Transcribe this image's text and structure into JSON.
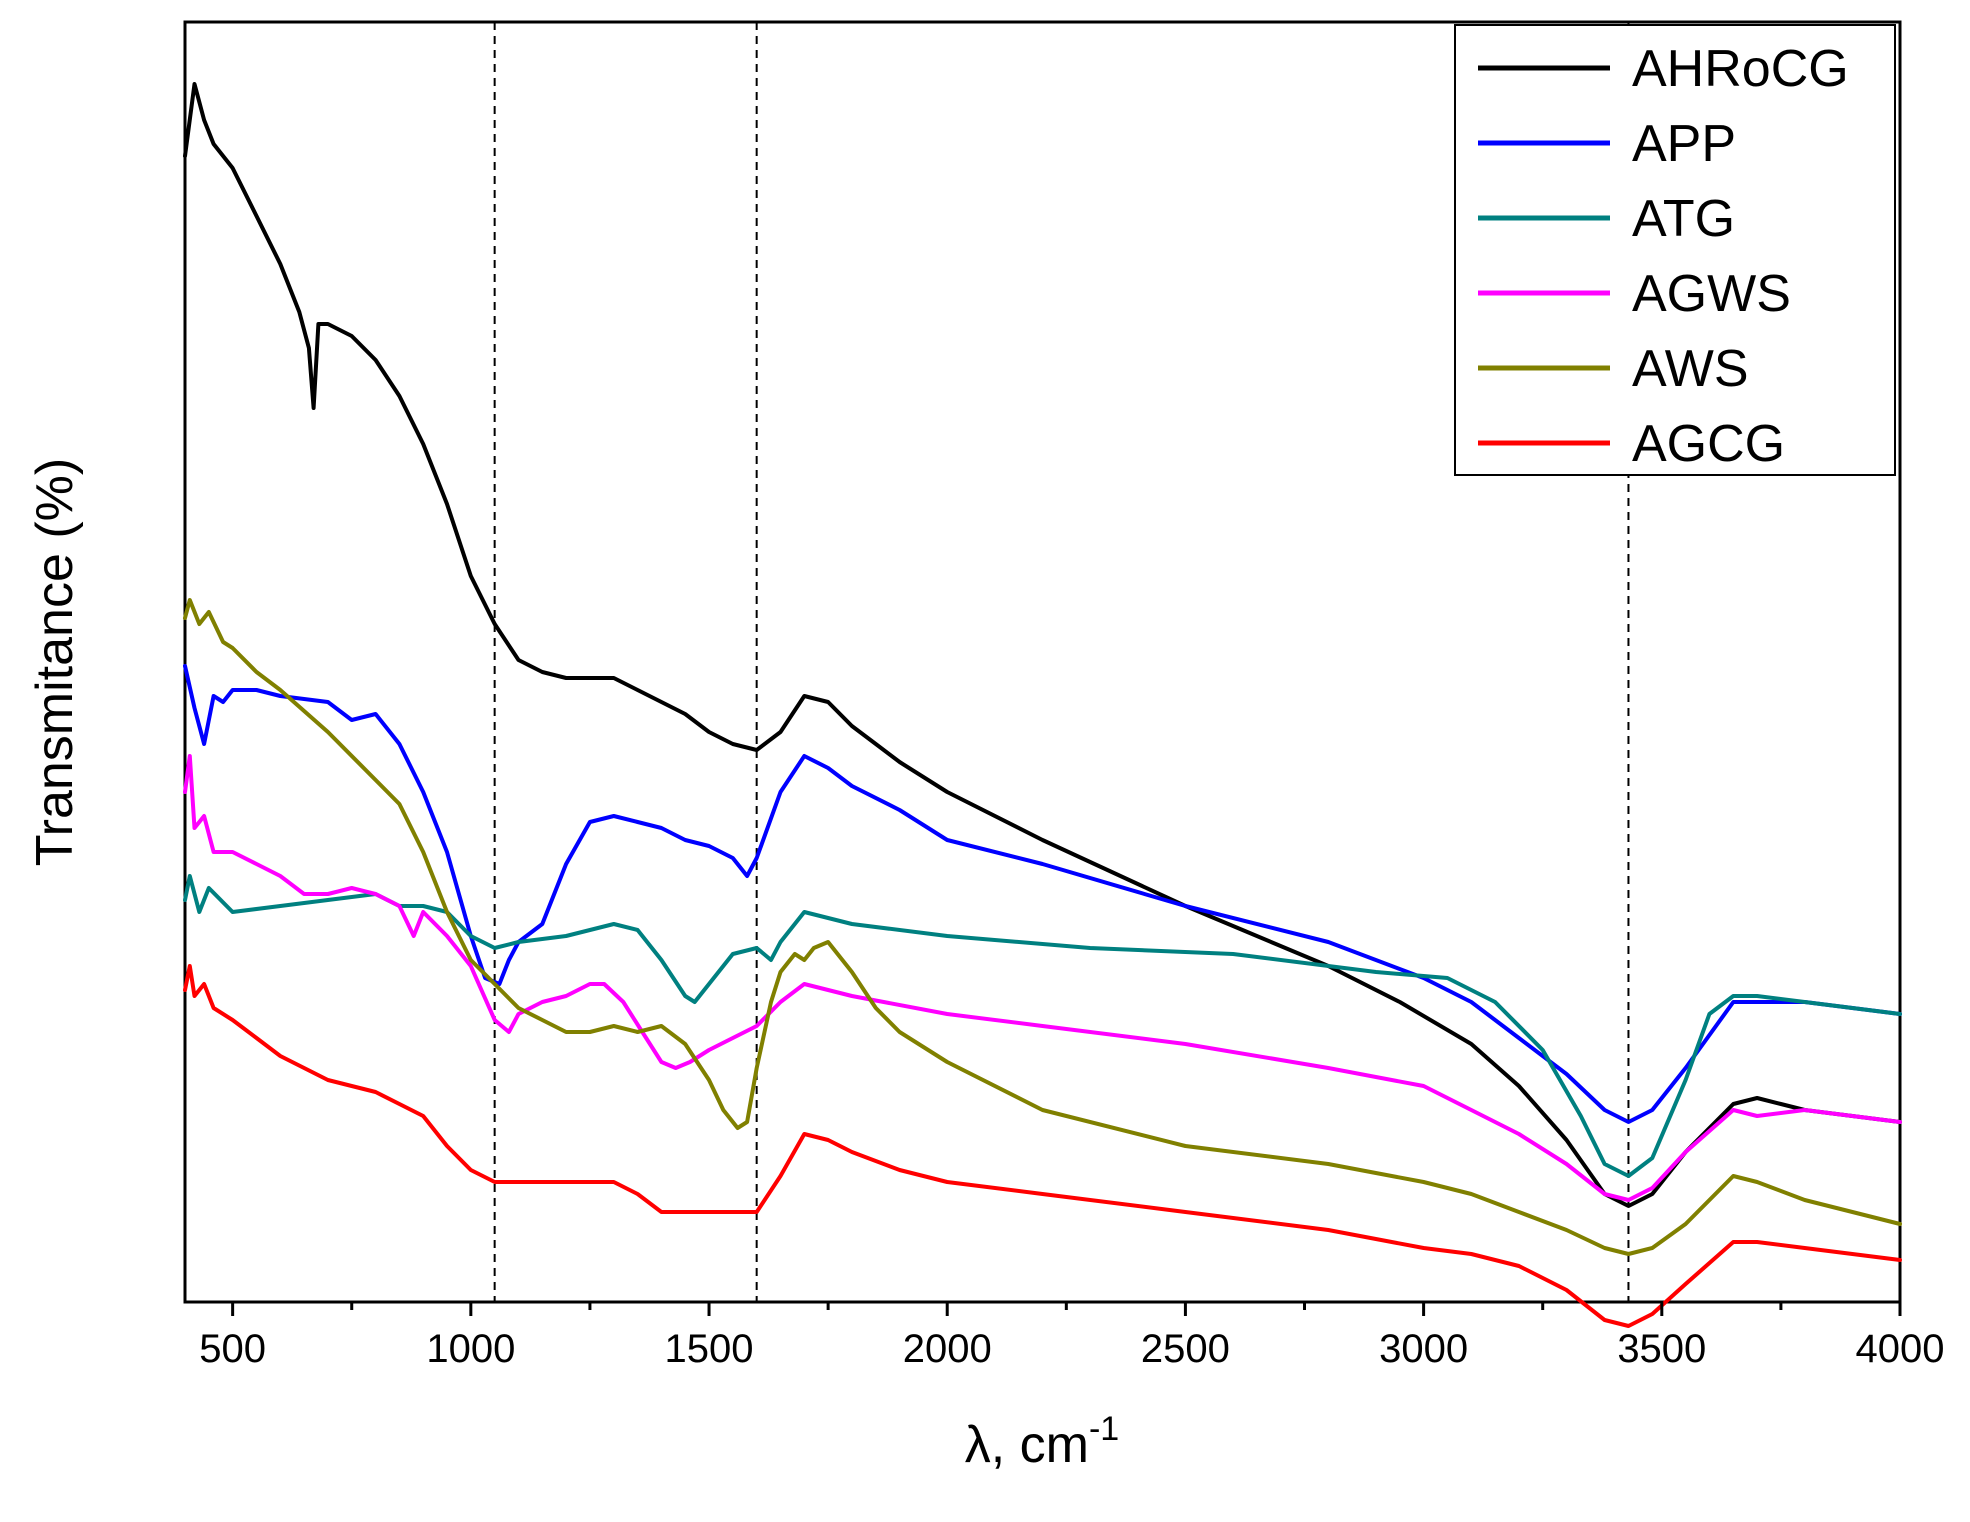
{
  "chart_data": {
    "type": "line",
    "title": "",
    "xlabel": "λ, cm",
    "xlabel_sup": "-1",
    "ylabel": "Transmitance (%)",
    "xlim": [
      400,
      4000
    ],
    "ylim": [
      0,
      100
    ],
    "x_ticks": [
      500,
      1000,
      1500,
      2000,
      2500,
      3000,
      3500,
      4000
    ],
    "x_minor_step": 250,
    "y_ticks_shown": false,
    "grid": false,
    "legend": "top-right",
    "reference_lines_x": [
      1050,
      1600,
      3430
    ],
    "series": [
      {
        "name": "AHRoCG",
        "color": "#000000",
        "x": [
          400,
          420,
          440,
          460,
          500,
          550,
          600,
          640,
          660,
          670,
          680,
          700,
          750,
          800,
          850,
          900,
          950,
          1000,
          1050,
          1100,
          1150,
          1200,
          1250,
          1300,
          1350,
          1400,
          1450,
          1500,
          1550,
          1600,
          1650,
          1700,
          1750,
          1800,
          1850,
          1900,
          2000,
          2200,
          2500,
          2800,
          2950,
          3100,
          3200,
          3300,
          3380,
          3430,
          3480,
          3550,
          3650,
          3700,
          3750,
          3800,
          3900,
          4000
        ],
        "y": [
          93,
          99,
          96,
          94,
          92,
          88,
          84,
          80,
          77,
          72,
          79,
          79,
          78,
          76,
          73,
          69,
          64,
          58,
          54,
          51,
          50,
          49.5,
          49.5,
          49.5,
          48.5,
          47.5,
          46.5,
          45,
          44,
          43.5,
          45,
          48,
          47.5,
          45.5,
          44,
          42.5,
          40,
          36,
          30.5,
          25.5,
          22.5,
          19,
          15.5,
          11,
          6.5,
          5.5,
          6.5,
          10,
          14,
          14.5,
          14,
          13.5,
          13,
          12.5
        ]
      },
      {
        "name": "APP",
        "color": "#0000ff",
        "x": [
          400,
          420,
          440,
          460,
          480,
          500,
          550,
          600,
          700,
          750,
          800,
          850,
          900,
          950,
          1000,
          1030,
          1060,
          1080,
          1100,
          1150,
          1200,
          1250,
          1300,
          1350,
          1400,
          1450,
          1500,
          1550,
          1580,
          1600,
          1650,
          1700,
          1750,
          1800,
          1900,
          2000,
          2200,
          2500,
          2800,
          3000,
          3100,
          3200,
          3300,
          3380,
          3430,
          3480,
          3550,
          3650,
          3700,
          3800,
          3900,
          4000
        ],
        "y": [
          50.5,
          47,
          44,
          48,
          47.5,
          48.5,
          48.5,
          48,
          47.5,
          46,
          46.5,
          44,
          40,
          35,
          28,
          24.5,
          24,
          26,
          27.5,
          29,
          34,
          37.5,
          38,
          37.5,
          37,
          36,
          35.5,
          34.5,
          33,
          34.5,
          40,
          43,
          42,
          40.5,
          38.5,
          36,
          34,
          30.5,
          27.5,
          24.5,
          22.5,
          19.5,
          16.5,
          13.5,
          12.5,
          13.5,
          17,
          22.5,
          22.5,
          22.5,
          22,
          21.5
        ]
      },
      {
        "name": "ATG",
        "color": "#008080",
        "x": [
          400,
          410,
          430,
          450,
          500,
          600,
          700,
          800,
          850,
          900,
          950,
          1000,
          1050,
          1100,
          1200,
          1300,
          1350,
          1400,
          1450,
          1470,
          1500,
          1550,
          1600,
          1630,
          1650,
          1700,
          1800,
          2000,
          2300,
          2600,
          2900,
          3050,
          3150,
          3250,
          3330,
          3380,
          3430,
          3480,
          3550,
          3600,
          3650,
          3700,
          3800,
          3900,
          4000
        ],
        "y": [
          31,
          33,
          30,
          32,
          30,
          30.5,
          31,
          31.5,
          30.5,
          30.5,
          30,
          28,
          27,
          27.5,
          28,
          29,
          28.5,
          26,
          23,
          22.5,
          24,
          26.5,
          27,
          26,
          27.5,
          30,
          29,
          28,
          27,
          26.5,
          25,
          24.5,
          22.5,
          18.5,
          13,
          9,
          8,
          9.5,
          16,
          21.5,
          23,
          23,
          22.5,
          22,
          21.5
        ]
      },
      {
        "name": "AGWS",
        "color": "#ff00ff",
        "x": [
          400,
          410,
          420,
          440,
          460,
          500,
          550,
          600,
          650,
          700,
          750,
          800,
          850,
          880,
          900,
          950,
          1000,
          1050,
          1080,
          1100,
          1150,
          1200,
          1250,
          1280,
          1320,
          1360,
          1400,
          1430,
          1460,
          1500,
          1550,
          1600,
          1650,
          1700,
          1800,
          2000,
          2200,
          2500,
          2800,
          3000,
          3100,
          3200,
          3300,
          3380,
          3430,
          3480,
          3550,
          3650,
          3700,
          3800,
          3900,
          4000
        ],
        "y": [
          40,
          43,
          37,
          38,
          35,
          35,
          34,
          33,
          31.5,
          31.5,
          32,
          31.5,
          30.5,
          28,
          30,
          28,
          25.5,
          21,
          20,
          21.5,
          22.5,
          23,
          24,
          24,
          22.5,
          20,
          17.5,
          17,
          17.5,
          18.5,
          19.5,
          20.5,
          22.5,
          24,
          23,
          21.5,
          20.5,
          19,
          17,
          15.5,
          13.5,
          11.5,
          9,
          6.5,
          6,
          7,
          10,
          13.5,
          13,
          13.5,
          13,
          12.5
        ]
      },
      {
        "name": "AWS",
        "color": "#808000",
        "x": [
          400,
          410,
          430,
          450,
          480,
          500,
          550,
          600,
          700,
          800,
          850,
          900,
          950,
          1000,
          1050,
          1100,
          1150,
          1200,
          1250,
          1300,
          1350,
          1400,
          1450,
          1500,
          1530,
          1560,
          1580,
          1600,
          1630,
          1650,
          1680,
          1700,
          1720,
          1750,
          1800,
          1850,
          1900,
          2000,
          2200,
          2500,
          2800,
          3000,
          3100,
          3200,
          3300,
          3380,
          3430,
          3480,
          3550,
          3650,
          3700,
          3800,
          3900,
          4000
        ],
        "y": [
          54.5,
          56,
          54,
          55,
          52.5,
          52,
          50,
          48.5,
          45,
          41,
          39,
          35,
          30,
          26,
          24,
          22,
          21,
          20,
          20,
          20.5,
          20,
          20.5,
          19,
          16,
          13.5,
          12,
          12.5,
          17,
          22.5,
          25,
          26.5,
          26,
          27,
          27.5,
          25,
          22,
          20,
          17.5,
          13.5,
          10.5,
          9,
          7.5,
          6.5,
          5,
          3.5,
          2,
          1.5,
          2,
          4,
          8,
          7.5,
          6,
          5,
          4
        ]
      },
      {
        "name": "AGCG",
        "color": "#ff0000",
        "x": [
          400,
          410,
          420,
          440,
          460,
          500,
          550,
          600,
          650,
          700,
          750,
          800,
          850,
          900,
          950,
          1000,
          1050,
          1100,
          1200,
          1300,
          1350,
          1400,
          1450,
          1500,
          1550,
          1600,
          1650,
          1700,
          1750,
          1800,
          1900,
          2000,
          2200,
          2500,
          2800,
          3000,
          3100,
          3200,
          3300,
          3380,
          3430,
          3480,
          3550,
          3650,
          3700,
          3800,
          3900,
          4000
        ],
        "y": [
          23.5,
          25.5,
          23,
          24,
          22,
          21,
          19.5,
          18,
          17,
          16,
          15.5,
          15,
          14,
          13,
          10.5,
          8.5,
          7.5,
          7.5,
          7.5,
          7.5,
          6.5,
          5,
          5,
          5,
          5,
          5,
          8,
          11.5,
          11,
          10,
          8.5,
          7.5,
          6.5,
          5,
          3.5,
          2,
          1.5,
          0.5,
          -1.5,
          -4,
          -4.5,
          -3.5,
          -1,
          2.5,
          2.5,
          2,
          1.5,
          1
        ]
      }
    ]
  }
}
